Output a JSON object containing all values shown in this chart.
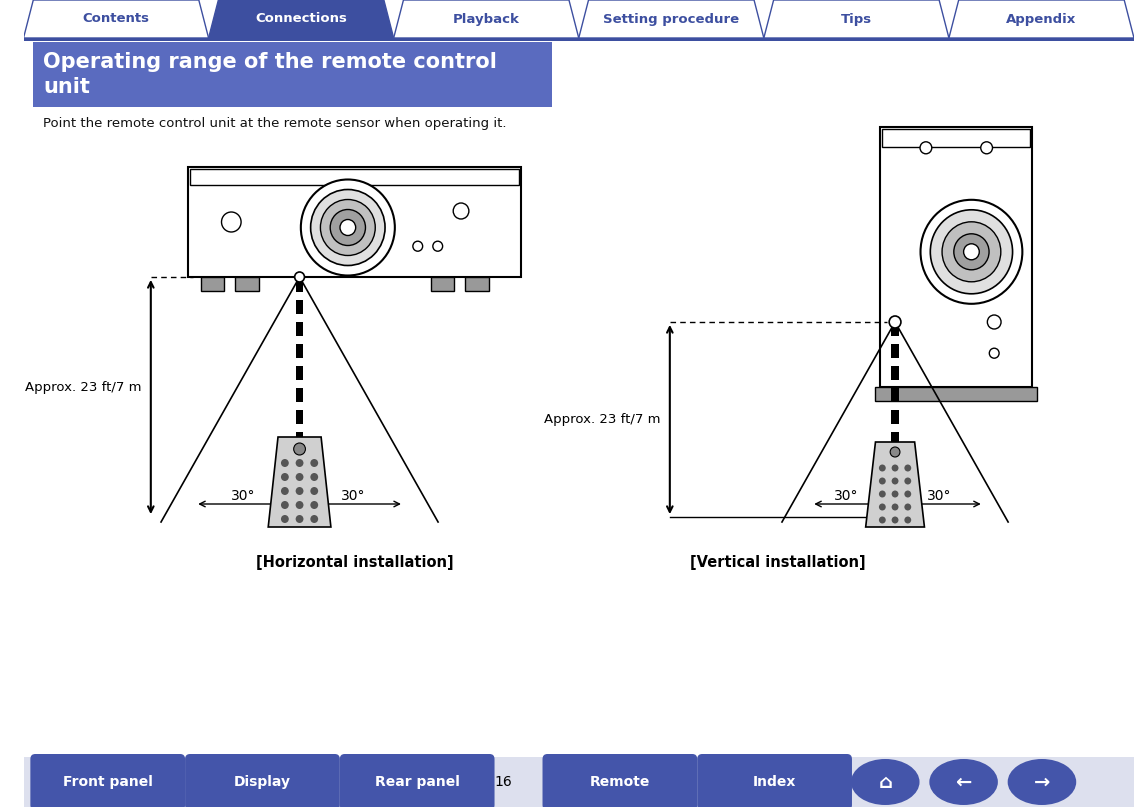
{
  "title_line1": "Operating range of the remote control",
  "title_line2": "unit",
  "subtitle": "Point the remote control unit at the remote sensor when operating it.",
  "top_tabs": [
    "Contents",
    "Connections",
    "Playback",
    "Setting procedure",
    "Tips",
    "Appendix"
  ],
  "active_tab": 1,
  "bottom_buttons": [
    "Front panel",
    "Display",
    "Rear panel",
    "Remote",
    "Index"
  ],
  "page_number": "16",
  "label_left": "[Horizontal installation]",
  "label_right": "[Vertical installation]",
  "distance_label": "Approx. 23 ft/7 m",
  "angle_left": "30°",
  "angle_right": "30°",
  "tab_color_active": "#3d4fa0",
  "tab_color_inactive": "#ffffff",
  "tab_text_active": "#ffffff",
  "tab_text_inactive": "#3d4fa0",
  "header_bg": "#5a6bbf",
  "title_text_color": "#ffffff",
  "border_color": "#3d4fa0",
  "body_bg": "#ffffff",
  "bottom_btn_color": "#4455aa",
  "bottom_btn_text": "#ffffff",
  "line_color": "#000000"
}
